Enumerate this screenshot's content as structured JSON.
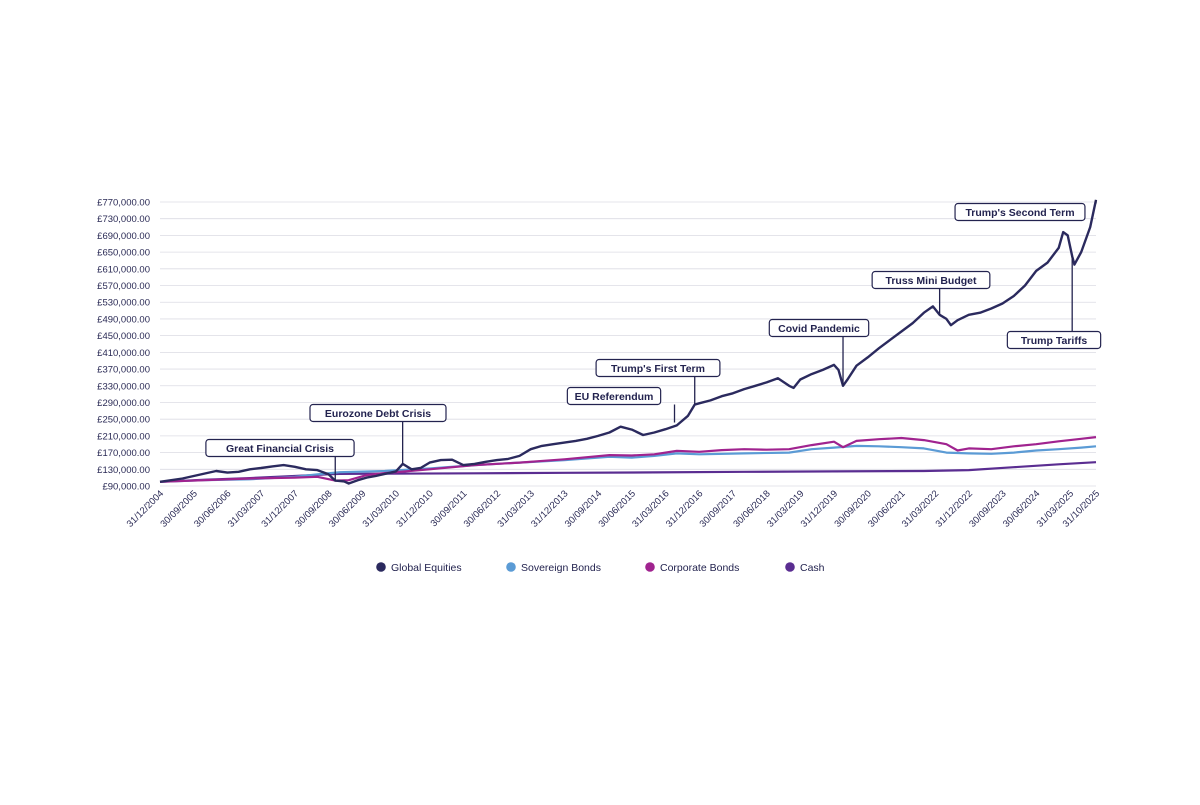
{
  "chart_data": {
    "type": "line",
    "y_tick_labels": [
      "£90,000.00",
      "£130,000.00",
      "£170,000.00",
      "£210,000.00",
      "£250,000.00",
      "£290,000.00",
      "£330,000.00",
      "£370,000.00",
      "£410,000.00",
      "£450,000.00",
      "£490,000.00",
      "£530,000.00",
      "£570,000.00",
      "£610,000.00",
      "£650,000.00",
      "£690,000.00",
      "£730,000.00",
      "£770,000.00"
    ],
    "y_tick_values": [
      90000,
      130000,
      170000,
      210000,
      250000,
      290000,
      330000,
      370000,
      410000,
      450000,
      490000,
      530000,
      570000,
      610000,
      650000,
      690000,
      730000,
      770000
    ],
    "ylim": [
      90000,
      770000
    ],
    "xlim": [
      2005.0,
      2025.83
    ],
    "x_tick_labels": [
      "31/12/2004",
      "30/09/2005",
      "30/06/2006",
      "31/03/2007",
      "31/12/2007",
      "30/09/2008",
      "30/06/2009",
      "31/03/2010",
      "31/12/2010",
      "30/09/2011",
      "30/06/2012",
      "31/03/2013",
      "31/12/2013",
      "30/09/2014",
      "30/06/2015",
      "31/03/2016",
      "31/12/2016",
      "30/09/2017",
      "30/06/2018",
      "31/03/2019",
      "31/12/2019",
      "30/09/2020",
      "30/06/2021",
      "31/03/2022",
      "31/12/2022",
      "30/09/2023",
      "30/06/2024",
      "31/03/2025",
      "31/10/2025"
    ],
    "x_tick_values": [
      2005.0,
      2005.75,
      2006.5,
      2007.25,
      2008.0,
      2008.75,
      2009.5,
      2010.25,
      2011.0,
      2011.75,
      2012.5,
      2013.25,
      2014.0,
      2014.75,
      2015.5,
      2016.25,
      2017.0,
      2017.75,
      2018.5,
      2019.25,
      2020.0,
      2020.75,
      2021.5,
      2022.25,
      2023.0,
      2023.75,
      2024.5,
      2025.25,
      2025.83
    ],
    "grid": true,
    "legend_position": "bottom",
    "series": [
      {
        "name": "Global Equities",
        "color": "#2b2a5e",
        "points": [
          [
            2005.0,
            100000
          ],
          [
            2005.25,
            104000
          ],
          [
            2005.5,
            108000
          ],
          [
            2005.75,
            114000
          ],
          [
            2006.0,
            120000
          ],
          [
            2006.25,
            126000
          ],
          [
            2006.5,
            122000
          ],
          [
            2006.75,
            124000
          ],
          [
            2007.0,
            130000
          ],
          [
            2007.25,
            133000
          ],
          [
            2007.5,
            137000
          ],
          [
            2007.75,
            140000
          ],
          [
            2008.0,
            136000
          ],
          [
            2008.25,
            130000
          ],
          [
            2008.5,
            128000
          ],
          [
            2008.75,
            118000
          ],
          [
            2008.9,
            103000
          ],
          [
            2009.1,
            101000
          ],
          [
            2009.2,
            96000
          ],
          [
            2009.4,
            104000
          ],
          [
            2009.6,
            110000
          ],
          [
            2009.8,
            114000
          ],
          [
            2010.0,
            119000
          ],
          [
            2010.25,
            125000
          ],
          [
            2010.4,
            143000
          ],
          [
            2010.6,
            130000
          ],
          [
            2010.8,
            133000
          ],
          [
            2011.0,
            146000
          ],
          [
            2011.25,
            152000
          ],
          [
            2011.5,
            153000
          ],
          [
            2011.75,
            140000
          ],
          [
            2012.0,
            143000
          ],
          [
            2012.25,
            148000
          ],
          [
            2012.5,
            152000
          ],
          [
            2012.75,
            155000
          ],
          [
            2013.0,
            162000
          ],
          [
            2013.25,
            178000
          ],
          [
            2013.5,
            186000
          ],
          [
            2013.75,
            190000
          ],
          [
            2014.0,
            194000
          ],
          [
            2014.25,
            198000
          ],
          [
            2014.5,
            203000
          ],
          [
            2014.75,
            210000
          ],
          [
            2015.0,
            218000
          ],
          [
            2015.25,
            232000
          ],
          [
            2015.5,
            225000
          ],
          [
            2015.75,
            212000
          ],
          [
            2016.0,
            218000
          ],
          [
            2016.25,
            226000
          ],
          [
            2016.5,
            235000
          ],
          [
            2016.75,
            258000
          ],
          [
            2016.9,
            285000
          ],
          [
            2017.0,
            288000
          ],
          [
            2017.25,
            295000
          ],
          [
            2017.5,
            305000
          ],
          [
            2017.75,
            312000
          ],
          [
            2018.0,
            322000
          ],
          [
            2018.25,
            330000
          ],
          [
            2018.5,
            338000
          ],
          [
            2018.75,
            348000
          ],
          [
            2019.0,
            330000
          ],
          [
            2019.1,
            325000
          ],
          [
            2019.25,
            345000
          ],
          [
            2019.5,
            358000
          ],
          [
            2019.75,
            368000
          ],
          [
            2020.0,
            380000
          ],
          [
            2020.1,
            368000
          ],
          [
            2020.2,
            330000
          ],
          [
            2020.3,
            345000
          ],
          [
            2020.5,
            378000
          ],
          [
            2020.75,
            398000
          ],
          [
            2021.0,
            420000
          ],
          [
            2021.25,
            440000
          ],
          [
            2021.5,
            460000
          ],
          [
            2021.75,
            480000
          ],
          [
            2022.0,
            505000
          ],
          [
            2022.2,
            520000
          ],
          [
            2022.35,
            500000
          ],
          [
            2022.5,
            490000
          ],
          [
            2022.6,
            475000
          ],
          [
            2022.75,
            487000
          ],
          [
            2023.0,
            500000
          ],
          [
            2023.25,
            505000
          ],
          [
            2023.5,
            515000
          ],
          [
            2023.75,
            527000
          ],
          [
            2024.0,
            545000
          ],
          [
            2024.25,
            570000
          ],
          [
            2024.5,
            605000
          ],
          [
            2024.75,
            625000
          ],
          [
            2025.0,
            660000
          ],
          [
            2025.1,
            698000
          ],
          [
            2025.2,
            690000
          ],
          [
            2025.3,
            640000
          ],
          [
            2025.35,
            620000
          ],
          [
            2025.5,
            650000
          ],
          [
            2025.7,
            710000
          ],
          [
            2025.83,
            775000
          ]
        ]
      },
      {
        "name": "Sovereign Bonds",
        "color": "#5b9bd5",
        "points": [
          [
            2005.0,
            100000
          ],
          [
            2006.0,
            104000
          ],
          [
            2007.0,
            106000
          ],
          [
            2008.0,
            112000
          ],
          [
            2008.5,
            118000
          ],
          [
            2009.0,
            123000
          ],
          [
            2010.0,
            126000
          ],
          [
            2011.0,
            132000
          ],
          [
            2012.0,
            140000
          ],
          [
            2013.0,
            146000
          ],
          [
            2014.0,
            152000
          ],
          [
            2015.0,
            160000
          ],
          [
            2015.5,
            158000
          ],
          [
            2016.0,
            162000
          ],
          [
            2016.5,
            168000
          ],
          [
            2017.0,
            166000
          ],
          [
            2018.0,
            168000
          ],
          [
            2019.0,
            170000
          ],
          [
            2019.5,
            178000
          ],
          [
            2020.0,
            182000
          ],
          [
            2020.5,
            186000
          ],
          [
            2021.0,
            185000
          ],
          [
            2021.5,
            183000
          ],
          [
            2022.0,
            180000
          ],
          [
            2022.5,
            170000
          ],
          [
            2023.0,
            168000
          ],
          [
            2023.5,
            167000
          ],
          [
            2024.0,
            170000
          ],
          [
            2024.5,
            175000
          ],
          [
            2025.0,
            178000
          ],
          [
            2025.5,
            182000
          ],
          [
            2025.83,
            185000
          ]
        ]
      },
      {
        "name": "Corporate Bonds",
        "color": "#a0238f",
        "points": [
          [
            2005.0,
            100000
          ],
          [
            2006.0,
            104000
          ],
          [
            2007.0,
            108000
          ],
          [
            2008.0,
            110000
          ],
          [
            2008.5,
            112000
          ],
          [
            2008.9,
            103000
          ],
          [
            2009.2,
            104000
          ],
          [
            2009.6,
            116000
          ],
          [
            2010.0,
            121000
          ],
          [
            2011.0,
            130000
          ],
          [
            2012.0,
            140000
          ],
          [
            2013.0,
            146000
          ],
          [
            2014.0,
            154000
          ],
          [
            2015.0,
            164000
          ],
          [
            2015.5,
            163000
          ],
          [
            2016.0,
            166000
          ],
          [
            2016.5,
            174000
          ],
          [
            2017.0,
            172000
          ],
          [
            2017.5,
            176000
          ],
          [
            2018.0,
            178000
          ],
          [
            2018.5,
            177000
          ],
          [
            2019.0,
            178000
          ],
          [
            2019.5,
            188000
          ],
          [
            2020.0,
            196000
          ],
          [
            2020.2,
            183000
          ],
          [
            2020.5,
            198000
          ],
          [
            2021.0,
            202000
          ],
          [
            2021.5,
            205000
          ],
          [
            2022.0,
            200000
          ],
          [
            2022.5,
            190000
          ],
          [
            2022.75,
            175000
          ],
          [
            2023.0,
            180000
          ],
          [
            2023.5,
            178000
          ],
          [
            2024.0,
            185000
          ],
          [
            2024.5,
            190000
          ],
          [
            2025.0,
            197000
          ],
          [
            2025.5,
            203000
          ],
          [
            2025.83,
            207000
          ]
        ]
      },
      {
        "name": "Cash",
        "color": "#5a2d91",
        "points": [
          [
            2005.0,
            100000
          ],
          [
            2006.0,
            105000
          ],
          [
            2007.0,
            109000
          ],
          [
            2008.0,
            114000
          ],
          [
            2008.75,
            118000
          ],
          [
            2009.0,
            119000
          ],
          [
            2010.0,
            119500
          ],
          [
            2012.0,
            120500
          ],
          [
            2014.0,
            121500
          ],
          [
            2016.0,
            122500
          ],
          [
            2018.0,
            124000
          ],
          [
            2020.0,
            125000
          ],
          [
            2022.0,
            126000
          ],
          [
            2023.0,
            128000
          ],
          [
            2024.0,
            135000
          ],
          [
            2025.0,
            142000
          ],
          [
            2025.83,
            147000
          ]
        ]
      }
    ],
    "annotations": [
      {
        "label": "Great Financial Crisis",
        "x": 2008.9,
        "y": 103000
      },
      {
        "label": "Eurozone Debt Crisis",
        "x": 2010.4,
        "y": 143000
      },
      {
        "label": "EU Referendum",
        "x": 2016.45,
        "y": 242000
      },
      {
        "label": "Trump's First Term",
        "x": 2016.9,
        "y": 285000
      },
      {
        "label": "Covid Pandemic",
        "x": 2020.2,
        "y": 330000
      },
      {
        "label": "Truss Mini Budget",
        "x": 2022.35,
        "y": 500000
      },
      {
        "label": "Trump's Second Term",
        "x": 2025.83,
        "y": 775000
      },
      {
        "label": "Trump Tariffs",
        "x": 2025.3,
        "y": 640000
      }
    ]
  }
}
